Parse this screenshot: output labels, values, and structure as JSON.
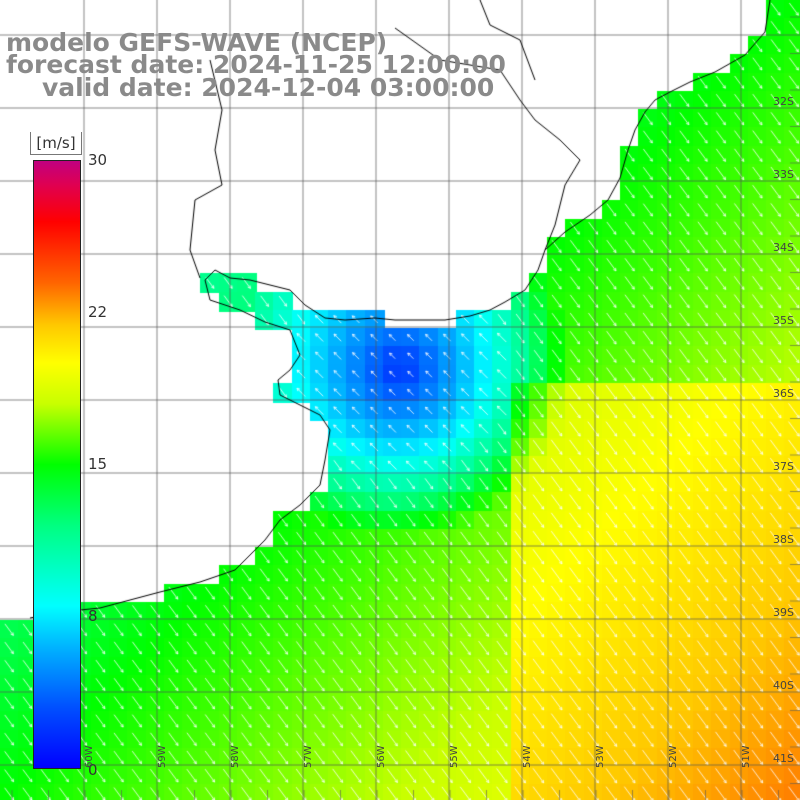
{
  "title": {
    "model": "modelo GEFS-WAVE (NCEP)",
    "forecast": "forecast date: 2024-11-25 12:00:00",
    "valid": "valid date: 2024-12-04 03:00:00"
  },
  "colorbar": {
    "units": "[m/s]",
    "ticks": [
      {
        "label": "30",
        "value": 30
      },
      {
        "label": "22",
        "value": 22
      },
      {
        "label": "15",
        "value": 15
      },
      {
        "label": "8",
        "value": 8
      },
      {
        "label": "0",
        "value": 0
      }
    ],
    "colors": [
      "#0000ff",
      "#00b4ff",
      "#00ffff",
      "#00ff00",
      "#ffff00",
      "#ff6400",
      "#ff0000",
      "#c00080"
    ]
  },
  "lat_labels": [
    "32S",
    "33S",
    "34S",
    "35S",
    "36S",
    "37S",
    "38S",
    "39S",
    "40S",
    "41S"
  ],
  "lon_labels": [
    "60W",
    "59W",
    "58W",
    "57W",
    "56W",
    "55W",
    "54W",
    "53W",
    "52W",
    "51W"
  ],
  "colors": {
    "land": "#ffffff",
    "grid": "#555555",
    "coast": "#000000",
    "title": "#8a8a8a",
    "arrow": "#ffffff"
  }
}
